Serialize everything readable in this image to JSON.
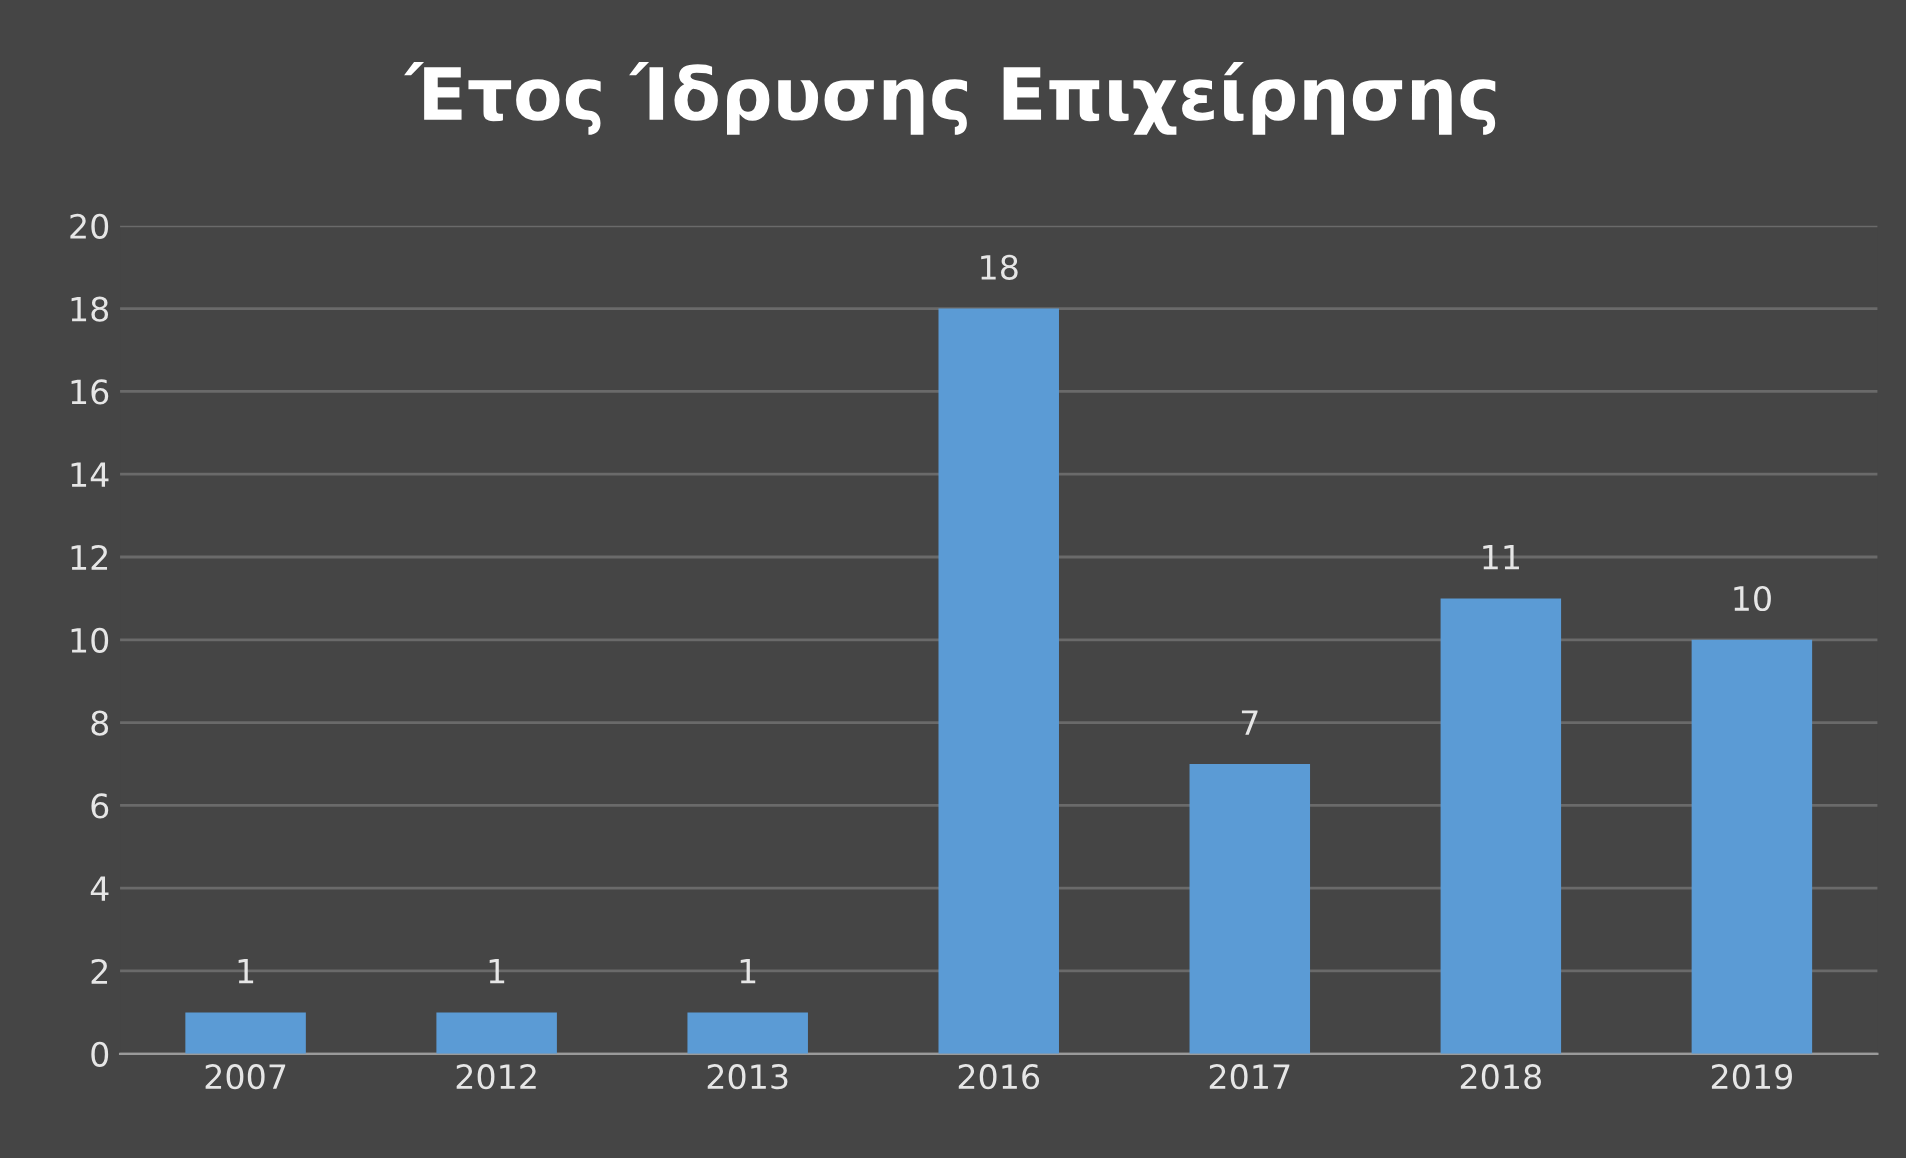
{
  "chart_data": {
    "type": "bar",
    "title": "Έτος Ίδρυσης Επιχείρησης",
    "categories": [
      "2007",
      "2012",
      "2013",
      "2016",
      "2017",
      "2018",
      "2019"
    ],
    "values": [
      1,
      1,
      1,
      18,
      7,
      11,
      10
    ],
    "color": "#5b9bd5",
    "ylim": [
      0,
      20
    ],
    "yticks": [
      0,
      2,
      4,
      6,
      8,
      10,
      12,
      14,
      16,
      18,
      20
    ],
    "grid": "y",
    "data_labels": true,
    "legend": false
  }
}
